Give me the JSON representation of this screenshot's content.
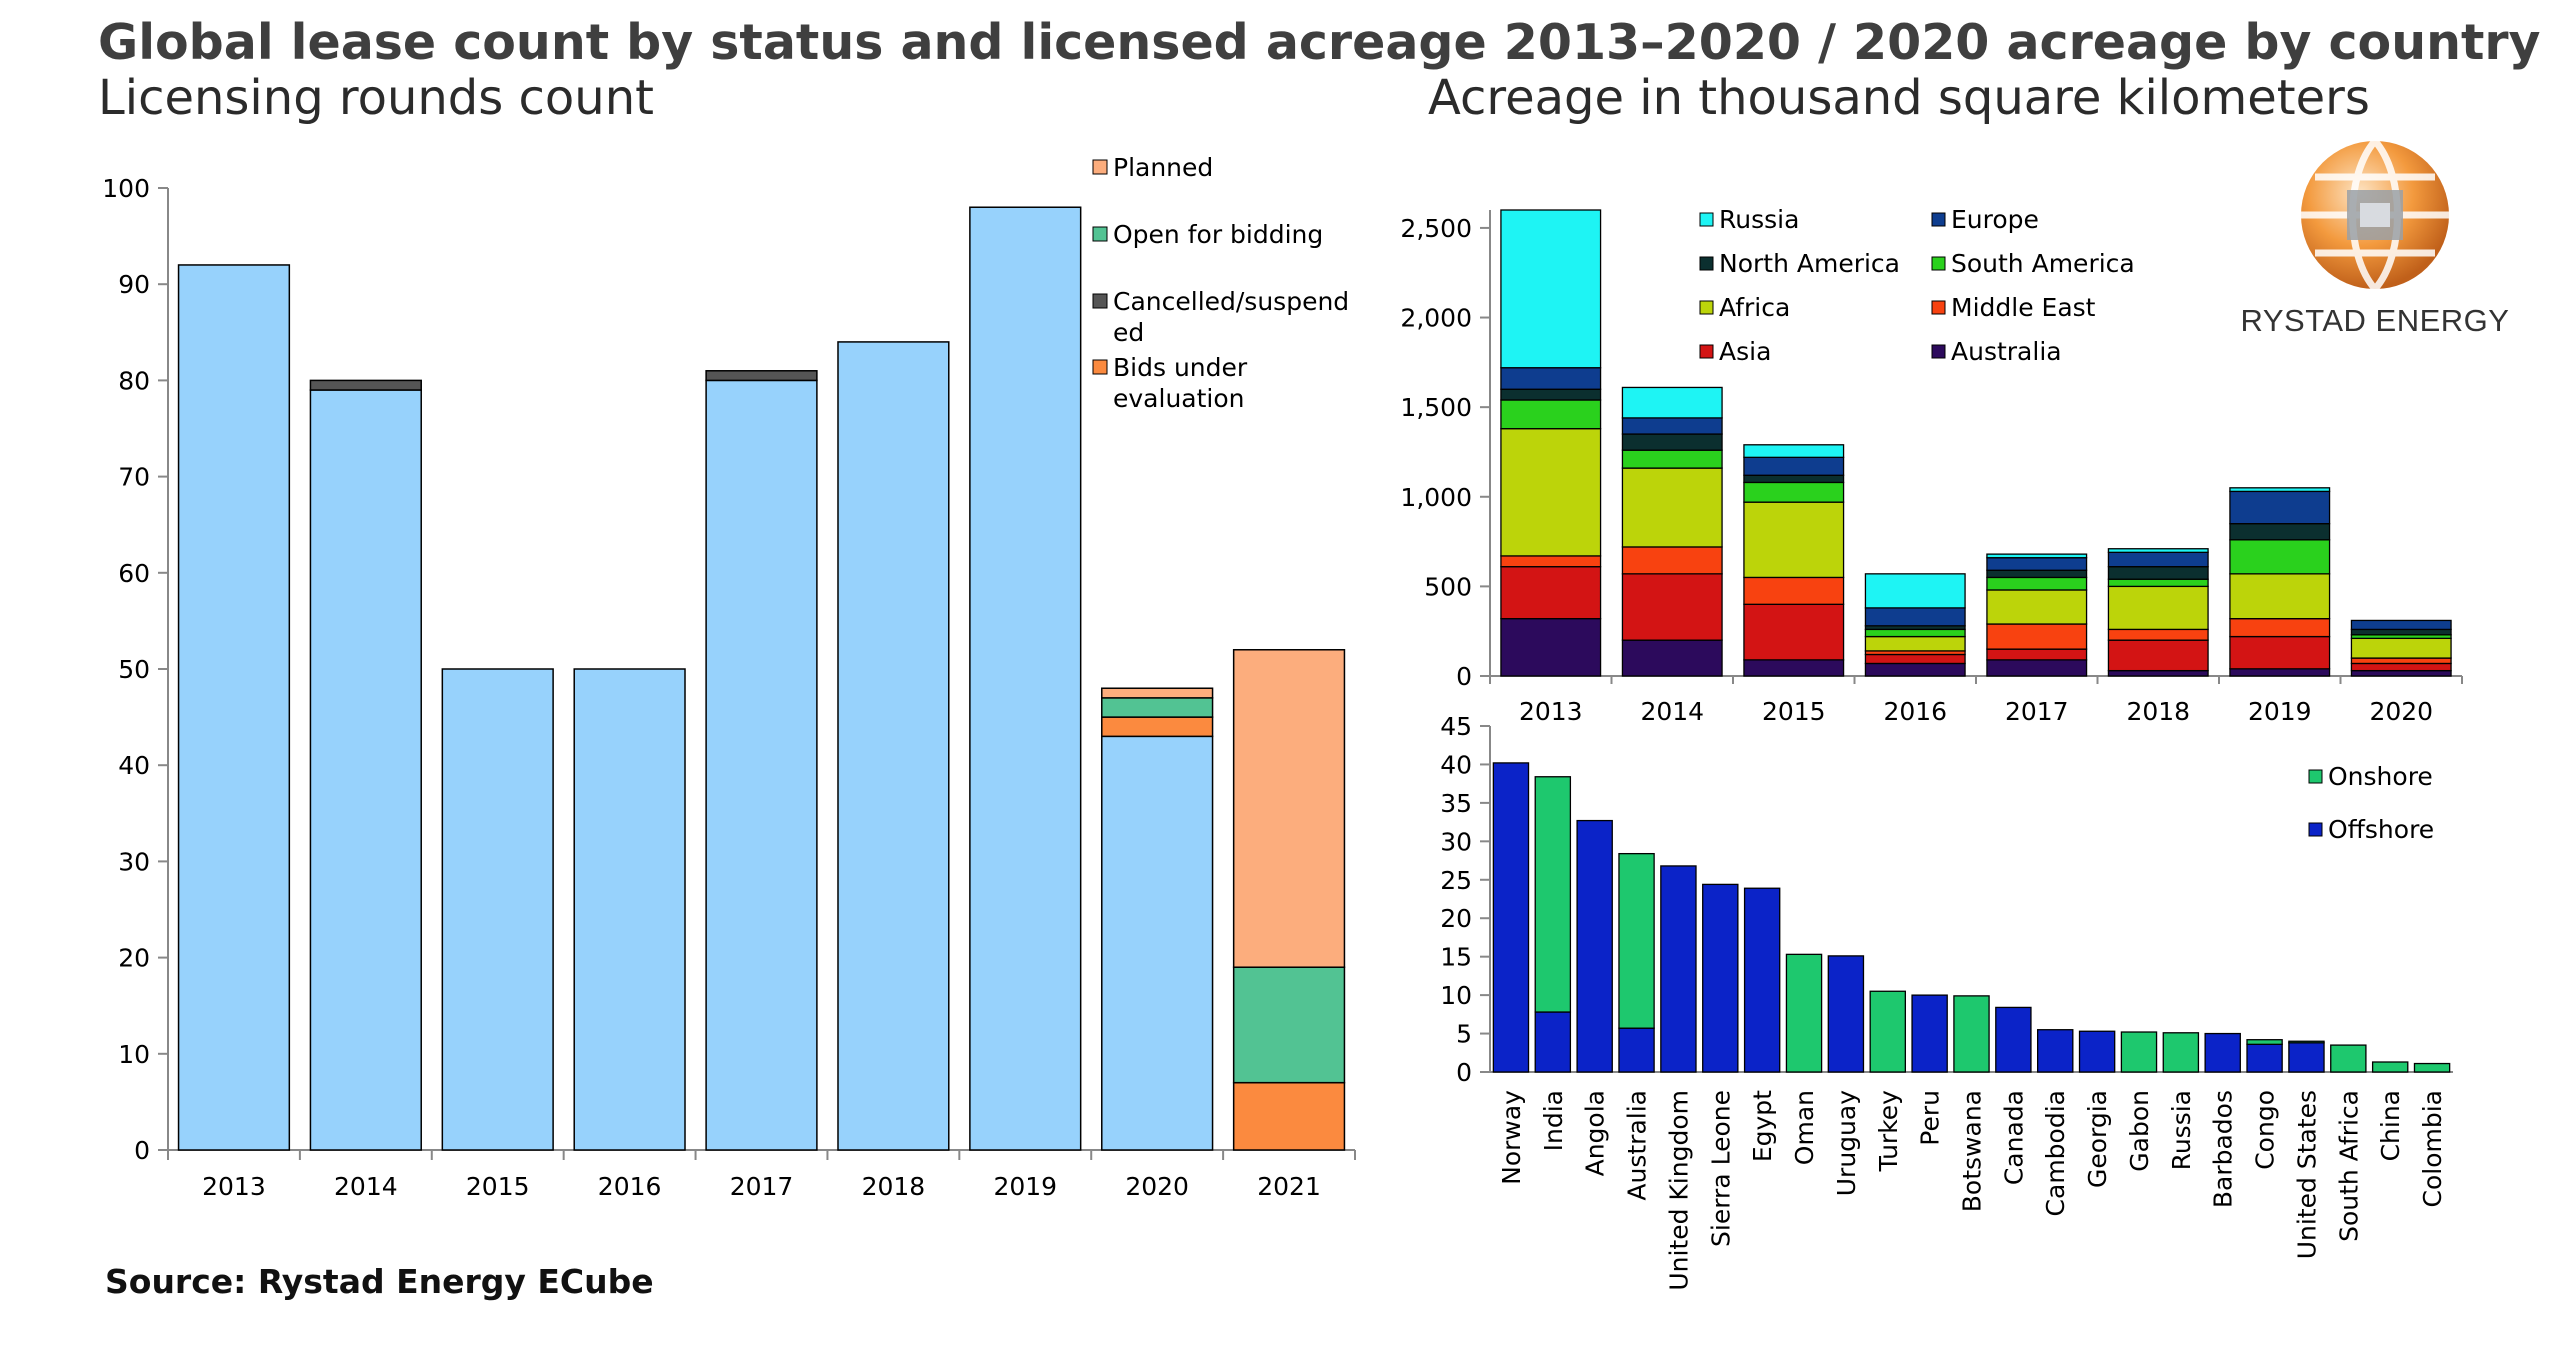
{
  "title": "Global lease count by status and licensed acreage 2013–2020 / 2020 acreage by country",
  "subtitles": {
    "left": "Licensing rounds count",
    "right": "Acreage in thousand square kilometers"
  },
  "source": "Source: Rystad Energy ECube",
  "logo": {
    "text": "RYSTAD ENERGY",
    "icon": "rystad-globe-icon"
  },
  "colors": {
    "planned": "#fcad7d",
    "open": "#52c393",
    "cancelled": "#555555",
    "evaluation": "#fb8a3f",
    "awarded": "#97d2fc",
    "Russia": "#1ef4f4",
    "Europe": "#0e3d8f",
    "North America": "#0b2f2f",
    "South America": "#2ad11d",
    "Africa": "#bcd40a",
    "Middle East": "#f84210",
    "Asia": "#d31414",
    "Australia": "#2c0a5c",
    "Onshore": "#1ec86e",
    "Offshore": "#0b23c8"
  },
  "chart_data": [
    {
      "type": "bar",
      "stacked": true,
      "categories": [
        "2013",
        "2014",
        "2015",
        "2016",
        "2017",
        "2018",
        "2019",
        "2020",
        "2021"
      ],
      "ylim": [
        0,
        100
      ],
      "yticks": [
        0,
        10,
        20,
        30,
        40,
        50,
        60,
        70,
        80,
        90,
        100
      ],
      "series": [
        {
          "key": "awarded",
          "values": [
            92,
            79,
            50,
            50,
            80,
            84,
            98,
            43,
            0
          ]
        },
        {
          "key": "evaluation",
          "name": "Bids under evaluation",
          "values": [
            0,
            0,
            0,
            0,
            0,
            0,
            0,
            2,
            7
          ]
        },
        {
          "key": "cancelled",
          "name": "Cancelled/suspended",
          "values": [
            0,
            1,
            0,
            0,
            1,
            0,
            0,
            0,
            0
          ]
        },
        {
          "key": "open",
          "name": "Open for bidding",
          "values": [
            0,
            0,
            0,
            0,
            0,
            0,
            0,
            2,
            12
          ]
        },
        {
          "key": "planned",
          "name": "Planned",
          "values": [
            0,
            0,
            0,
            0,
            0,
            0,
            0,
            1,
            33
          ]
        }
      ],
      "legend": [
        {
          "key": "planned",
          "lines": [
            "Planned"
          ]
        },
        {
          "key": "open",
          "lines": [
            "Open for bidding"
          ]
        },
        {
          "key": "cancelled",
          "lines": [
            "Cancelled/suspend",
            "ed"
          ]
        },
        {
          "key": "evaluation",
          "lines": [
            "Bids under",
            "evaluation"
          ]
        }
      ],
      "legend_position": "top-right",
      "grid": false
    },
    {
      "type": "bar",
      "stacked": true,
      "categories": [
        "2013",
        "2014",
        "2015",
        "2016",
        "2017",
        "2018",
        "2019",
        "2020"
      ],
      "ylim": [
        0,
        2600
      ],
      "yticks": [
        0,
        500,
        1000,
        1500,
        2000,
        2500
      ],
      "ytick_labels": [
        "0",
        "500",
        "1,000",
        "1,500",
        "2,000",
        "2,500"
      ],
      "series": [
        {
          "name": "Australia",
          "values": [
            320,
            200,
            90,
            70,
            90,
            30,
            40,
            30
          ]
        },
        {
          "name": "Asia",
          "values": [
            290,
            370,
            310,
            50,
            60,
            170,
            180,
            40
          ]
        },
        {
          "name": "Middle East",
          "values": [
            60,
            150,
            150,
            20,
            140,
            60,
            100,
            30
          ]
        },
        {
          "name": "Africa",
          "values": [
            710,
            440,
            420,
            80,
            190,
            240,
            250,
            110
          ]
        },
        {
          "name": "South America",
          "values": [
            160,
            100,
            110,
            40,
            70,
            40,
            190,
            20
          ]
        },
        {
          "name": "North America",
          "values": [
            60,
            90,
            40,
            20,
            40,
            70,
            90,
            30
          ]
        },
        {
          "name": "Europe",
          "values": [
            120,
            90,
            100,
            100,
            70,
            80,
            180,
            50
          ]
        },
        {
          "name": "Russia",
          "values": [
            880,
            170,
            70,
            190,
            20,
            20,
            20,
            0
          ]
        }
      ],
      "legend": [
        "Russia",
        "Europe",
        "North America",
        "South America",
        "Africa",
        "Middle East",
        "Asia",
        "Australia"
      ],
      "legend_position": "top",
      "grid": false
    },
    {
      "type": "bar",
      "stacked": true,
      "categories": [
        "Norway",
        "India",
        "Angola",
        "Australia",
        "United Kingdom",
        "Sierra Leone",
        "Egypt",
        "Oman",
        "Uruguay",
        "Turkey",
        "Peru",
        "Botswana",
        "Canada",
        "Cambodia",
        "Georgia",
        "Gabon",
        "Russia",
        "Barbados",
        "Congo",
        "United States",
        "South Africa",
        "China",
        "Colombia"
      ],
      "ylim": [
        0,
        45
      ],
      "yticks": [
        0,
        5,
        10,
        15,
        20,
        25,
        30,
        35,
        40,
        45
      ],
      "series": [
        {
          "name": "Offshore",
          "values": [
            40.2,
            7.8,
            32.7,
            5.7,
            26.8,
            24.4,
            23.9,
            0,
            15.1,
            0,
            10.0,
            0,
            8.4,
            5.5,
            5.3,
            0,
            0,
            5.0,
            3.6,
            3.8,
            0,
            0,
            0
          ]
        },
        {
          "name": "Onshore",
          "values": [
            0,
            30.6,
            0,
            22.7,
            0,
            0,
            0,
            15.3,
            0,
            10.5,
            0,
            9.9,
            0,
            0,
            0,
            5.2,
            5.1,
            0,
            0.6,
            0.2,
            3.5,
            1.3,
            1.1
          ]
        }
      ],
      "legend": [
        "Onshore",
        "Offshore"
      ],
      "legend_position": "right",
      "grid": false
    }
  ]
}
